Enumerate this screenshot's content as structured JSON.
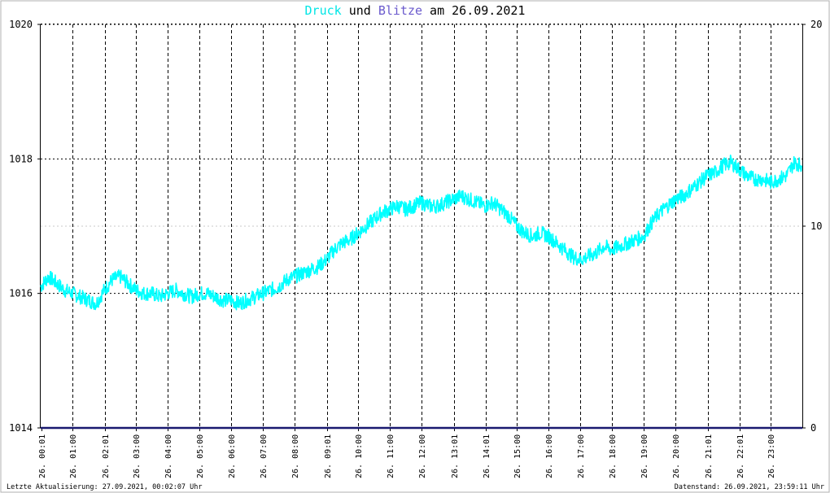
{
  "title": {
    "part1": "Druck",
    "part2": " und ",
    "part3": "Blitze",
    "part4": " am 26.09.2021",
    "part1_color": "#00e6e6",
    "part2_color": "#000000",
    "part3_color": "#6a5acd",
    "part4_color": "#000000"
  },
  "footer": {
    "left": "Letzte Aktualisierung: 27.09.2021, 00:02:07 Uhr",
    "right": "Datenstand: 26.09.2021, 23:59:11 Uhr"
  },
  "colors": {
    "pressure_line": "#00ffff",
    "lightning_line": "#191970",
    "grid": "#000000",
    "axis": "#000000"
  },
  "chart_data": {
    "type": "line",
    "title": "Druck und Blitze am 26.09.2021",
    "x_range_hours": [
      0,
      24
    ],
    "left_axis": {
      "ylim": [
        1014,
        1020
      ],
      "ticks": [
        1014,
        1016,
        1018,
        1020
      ]
    },
    "right_axis": {
      "ylim": [
        0,
        20
      ],
      "ticks": [
        0,
        10,
        20
      ]
    },
    "x_tick_hours": [
      0.0167,
      1.0,
      2.0167,
      3.0,
      4.0,
      5.0,
      6.0,
      7.0,
      8.0,
      9.0167,
      10.0,
      11.0,
      12.0,
      13.0167,
      14.0167,
      15.0,
      16.0,
      17.0,
      18.0,
      19.0,
      20.0,
      21.0167,
      22.0167,
      23.0
    ],
    "x_tick_labels": [
      "26. 00:01",
      "26. 01:00",
      "26. 02:01",
      "26. 03:00",
      "26. 04:00",
      "26. 05:00",
      "26. 06:00",
      "26. 07:00",
      "26. 08:00",
      "26. 09:01",
      "26. 10:00",
      "26. 11:00",
      "26. 12:00",
      "26. 13:01",
      "26. 14:01",
      "26. 15:00",
      "26. 16:00",
      "26. 17:00",
      "26. 18:00",
      "26. 19:00",
      "26. 20:00",
      "26. 21:01",
      "26. 22:01",
      "26. 23:00"
    ],
    "grid": true,
    "series": [
      {
        "name": "Druck",
        "axis": "left",
        "x": [
          0.0,
          0.25,
          0.5,
          0.75,
          1.0,
          1.25,
          1.5,
          1.75,
          2.0,
          2.25,
          2.5,
          2.75,
          3.0,
          3.25,
          3.5,
          3.75,
          4.0,
          4.25,
          4.5,
          4.75,
          5.0,
          5.25,
          5.5,
          5.75,
          6.0,
          6.25,
          6.5,
          6.75,
          7.0,
          7.25,
          7.5,
          7.75,
          8.0,
          8.25,
          8.5,
          8.75,
          9.0,
          9.25,
          9.5,
          9.75,
          10.0,
          10.25,
          10.5,
          10.75,
          11.0,
          11.25,
          11.5,
          11.75,
          12.0,
          12.25,
          12.5,
          12.75,
          13.0,
          13.25,
          13.5,
          13.75,
          14.0,
          14.25,
          14.5,
          14.75,
          15.0,
          15.25,
          15.5,
          15.75,
          16.0,
          16.25,
          16.5,
          16.75,
          17.0,
          17.25,
          17.5,
          17.75,
          18.0,
          18.25,
          18.5,
          18.75,
          19.0,
          19.25,
          19.5,
          19.75,
          20.0,
          20.25,
          20.5,
          20.75,
          21.0,
          21.25,
          21.5,
          21.75,
          22.0,
          22.25,
          22.5,
          22.75,
          23.0,
          23.25,
          23.5,
          23.75,
          23.98
        ],
        "values": [
          1016.1,
          1016.25,
          1016.15,
          1016.05,
          1016.0,
          1015.95,
          1015.9,
          1015.85,
          1016.05,
          1016.2,
          1016.25,
          1016.15,
          1016.05,
          1016.0,
          1016.0,
          1015.95,
          1016.0,
          1016.05,
          1016.0,
          1015.95,
          1016.0,
          1016.0,
          1015.95,
          1015.9,
          1015.9,
          1015.85,
          1015.9,
          1015.95,
          1016.0,
          1016.05,
          1016.1,
          1016.2,
          1016.25,
          1016.3,
          1016.35,
          1016.4,
          1016.5,
          1016.65,
          1016.75,
          1016.8,
          1016.9,
          1017.0,
          1017.1,
          1017.2,
          1017.25,
          1017.3,
          1017.25,
          1017.3,
          1017.35,
          1017.3,
          1017.3,
          1017.35,
          1017.4,
          1017.45,
          1017.4,
          1017.35,
          1017.3,
          1017.35,
          1017.25,
          1017.15,
          1017.0,
          1016.9,
          1016.85,
          1016.9,
          1016.85,
          1016.75,
          1016.65,
          1016.55,
          1016.5,
          1016.55,
          1016.6,
          1016.7,
          1016.65,
          1016.7,
          1016.75,
          1016.8,
          1016.85,
          1017.05,
          1017.2,
          1017.3,
          1017.4,
          1017.45,
          1017.55,
          1017.65,
          1017.75,
          1017.8,
          1017.9,
          1017.95,
          1017.85,
          1017.75,
          1017.7,
          1017.7,
          1017.65,
          1017.7,
          1017.75,
          1017.95,
          1017.9
        ]
      },
      {
        "name": "Blitze",
        "axis": "right",
        "x": [
          0,
          24
        ],
        "values": [
          0,
          0
        ]
      }
    ]
  }
}
